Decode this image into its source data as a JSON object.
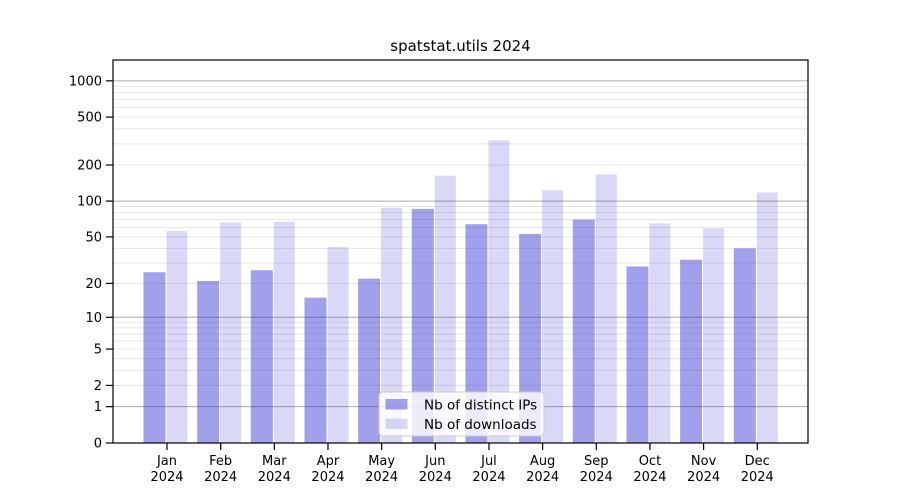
{
  "title": "spatstat.utils 2024",
  "colors": {
    "bar_distinct_ips": "rgba(31,31,208,0.42)",
    "bar_downloads": "rgba(31,31,208,0.17)",
    "grid_major": "#ababab",
    "grid_minor": "#e6e6e6",
    "axis": "#000000",
    "text": "#000000",
    "legend_bg": "rgba(255,255,255,0.8)",
    "legend_border": "#cccccc"
  },
  "legend": {
    "items": [
      "Nb of distinct IPs",
      "Nb of downloads"
    ]
  },
  "chart_data": {
    "type": "bar",
    "title": "spatstat.utils 2024",
    "categories": [
      "Jan 2024",
      "Feb 2024",
      "Mar 2024",
      "Apr 2024",
      "May 2024",
      "Jun 2024",
      "Jul 2024",
      "Aug 2024",
      "Sep 2024",
      "Oct 2024",
      "Nov 2024",
      "Dec 2024"
    ],
    "series": [
      {
        "name": "Nb of distinct IPs",
        "values": [
          25,
          21,
          26,
          15,
          22,
          86,
          64,
          53,
          70,
          28,
          32,
          40
        ]
      },
      {
        "name": "Nb of downloads",
        "values": [
          56,
          66,
          67,
          41,
          88,
          163,
          320,
          123,
          167,
          65,
          59,
          118
        ]
      }
    ],
    "xlabel": "",
    "ylabel": "",
    "yscale": "log1p",
    "yticks": [
      0,
      1,
      2,
      5,
      10,
      20,
      50,
      100,
      200,
      500,
      1000
    ],
    "ylim": [
      0,
      1490
    ],
    "grid": "horizontal; major lines at 1,10,100,1000; faint minor lines at 2-9 multiples",
    "legend_position": "lower center"
  }
}
